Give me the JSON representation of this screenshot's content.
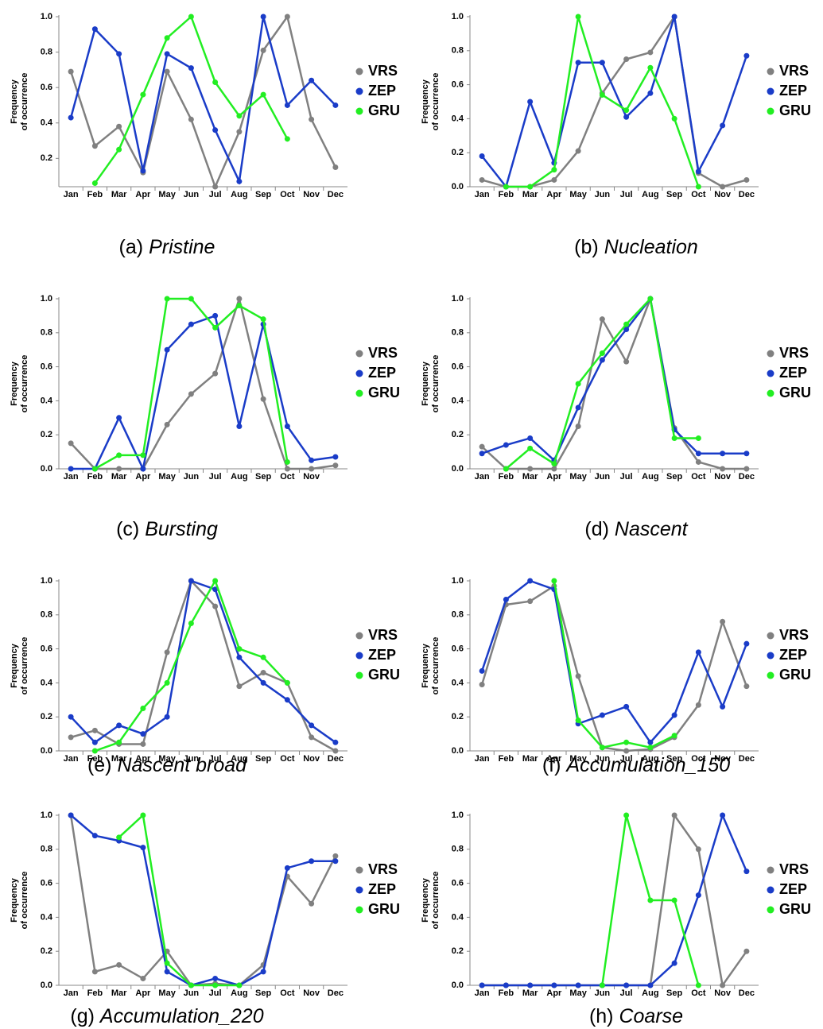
{
  "chart_data": [
    {
      "type": "line",
      "label": "(a)",
      "caption": "Pristine",
      "y_label": [
        "Frequency",
        "of occurrence"
      ],
      "categories": [
        "Jan",
        "Feb",
        "Mar",
        "Apr",
        "May",
        "Jun",
        "Jul",
        "Aug",
        "Sep",
        "Oct",
        "Nov",
        "Dec"
      ],
      "ylim": [
        0.04,
        1
      ],
      "yticks": [
        0.2,
        0.4,
        0.6,
        0.8,
        {
          "value": 1,
          "label": "1.0"
        }
      ],
      "series": [
        {
          "name": "VRS",
          "color": "#808080",
          "values": [
            0.69,
            0.27,
            0.38,
            0.12,
            0.69,
            0.42,
            0.04,
            0.35,
            0.81,
            1.0,
            0.42,
            0.15
          ]
        },
        {
          "name": "ZEP",
          "color": "#1a3cc8",
          "values": [
            0.43,
            0.93,
            0.79,
            0.13,
            0.79,
            0.71,
            0.36,
            0.07,
            1.0,
            0.5,
            0.64,
            0.5
          ]
        },
        {
          "name": "GRU",
          "color": "#22ee22",
          "values": [
            null,
            0.06,
            0.25,
            0.56,
            0.88,
            1.0,
            0.63,
            0.44,
            0.56,
            0.31,
            null,
            null
          ]
        }
      ]
    },
    {
      "type": "line",
      "label": "(b)",
      "caption": "Nucleation",
      "y_label": [
        "Frequency",
        "of occurrence"
      ],
      "categories": [
        "Jan",
        "Feb",
        "Mar",
        "Apr",
        "May",
        "Jun",
        "Jul",
        "Aug",
        "Sep",
        "Oct",
        "Nov",
        "Dec"
      ],
      "ylim": [
        0,
        1
      ],
      "yticks": [
        {
          "value": 0,
          "label": "0.0"
        },
        0.2,
        0.4,
        0.6,
        0.8,
        {
          "value": 1,
          "label": "1.0"
        }
      ],
      "series": [
        {
          "name": "VRS",
          "color": "#808080",
          "values": [
            0.04,
            0,
            0,
            0.04,
            0.21,
            0.55,
            0.75,
            0.79,
            1.0,
            0.08,
            0,
            0.04
          ]
        },
        {
          "name": "ZEP",
          "color": "#1a3cc8",
          "values": [
            0.18,
            0,
            0.5,
            0.14,
            0.73,
            0.73,
            0.41,
            0.55,
            1.0,
            0.09,
            0.36,
            0.77
          ]
        },
        {
          "name": "GRU",
          "color": "#22ee22",
          "values": [
            null,
            0,
            0,
            0.1,
            1.0,
            0.54,
            0.45,
            0.7,
            0.4,
            0,
            null,
            null
          ]
        }
      ]
    },
    {
      "type": "line",
      "label": "(c)",
      "caption": "Bursting",
      "y_label": [
        "Frequency",
        "of occurrence"
      ],
      "categories": [
        "Jan",
        "Feb",
        "Mar",
        "Apr",
        "May",
        "Jun",
        "Jul",
        "Aug",
        "Sep",
        "Oct",
        "Nov",
        null
      ],
      "ylim": [
        0,
        1
      ],
      "yticks": [
        {
          "value": 0,
          "label": "0.0"
        },
        0.2,
        0.4,
        0.6,
        0.8,
        {
          "value": 1,
          "label": "1.0"
        }
      ],
      "series": [
        {
          "name": "VRS",
          "color": "#808080",
          "values": [
            0.15,
            0,
            0,
            0,
            0.26,
            0.44,
            0.56,
            1.0,
            0.41,
            0,
            0,
            0.02
          ]
        },
        {
          "name": "ZEP",
          "color": "#1a3cc8",
          "values": [
            0,
            0,
            0.3,
            0,
            0.7,
            0.85,
            0.9,
            0.25,
            0.85,
            0.25,
            0.05,
            0.07
          ]
        },
        {
          "name": "GRU",
          "color": "#22ee22",
          "values": [
            null,
            0,
            0.08,
            0.08,
            1.0,
            1.0,
            0.83,
            0.96,
            0.88,
            0.04,
            null,
            null
          ]
        }
      ]
    },
    {
      "type": "line",
      "label": "(d)",
      "caption": "Nascent",
      "y_label": [
        "Frequency",
        "of occurrence"
      ],
      "categories": [
        "Jan",
        "Feb",
        "Mar",
        "Apr",
        "May",
        "Jun",
        "Jul",
        "Aug",
        "Sep",
        "Oct",
        "Nov",
        "Dec"
      ],
      "ylim": [
        0,
        1
      ],
      "yticks": [
        {
          "value": 0,
          "label": "0.0"
        },
        0.2,
        0.4,
        0.6,
        0.8,
        {
          "value": 1,
          "label": "1.0"
        }
      ],
      "series": [
        {
          "name": "VRS",
          "color": "#808080",
          "values": [
            0.13,
            0,
            0,
            0,
            0.25,
            0.88,
            0.63,
            1.0,
            0.24,
            0.04,
            0,
            0
          ]
        },
        {
          "name": "ZEP",
          "color": "#1a3cc8",
          "values": [
            0.09,
            0.14,
            0.18,
            0.05,
            0.36,
            0.64,
            0.82,
            1.0,
            0.23,
            0.09,
            0.09,
            0.09
          ]
        },
        {
          "name": "GRU",
          "color": "#22ee22",
          "values": [
            null,
            0,
            0.12,
            0.03,
            0.5,
            0.68,
            0.85,
            1.0,
            0.18,
            0.18,
            null,
            null
          ]
        }
      ]
    },
    {
      "type": "line",
      "label": "(e)",
      "caption": "Nascent broad",
      "y_label": [
        "Frequency",
        "of occurrence"
      ],
      "categories": [
        "Jan",
        "Feb",
        "Mar",
        "Apr",
        "May",
        "Jun",
        "Jul",
        "Aug",
        "Sep",
        "Oct",
        "Nov",
        "Dec"
      ],
      "ylim": [
        0,
        1
      ],
      "yticks": [
        {
          "value": 0,
          "label": "0.0"
        },
        0.2,
        0.4,
        0.6,
        0.8,
        {
          "value": 1,
          "label": "1.0"
        }
      ],
      "series": [
        {
          "name": "VRS",
          "color": "#808080",
          "values": [
            0.08,
            0.12,
            0.04,
            0.04,
            0.58,
            1.0,
            0.85,
            0.38,
            0.46,
            0.4,
            0.08,
            0
          ]
        },
        {
          "name": "ZEP",
          "color": "#1a3cc8",
          "values": [
            0.2,
            0.05,
            0.15,
            0.1,
            0.2,
            1.0,
            0.95,
            0.55,
            0.4,
            0.3,
            0.15,
            0.05
          ]
        },
        {
          "name": "GRU",
          "color": "#22ee22",
          "values": [
            null,
            0,
            0.05,
            0.25,
            0.4,
            0.75,
            1.0,
            0.6,
            0.55,
            0.4,
            null,
            null
          ]
        }
      ]
    },
    {
      "type": "line",
      "label": "(f)",
      "caption": "Accumulation_150",
      "y_label": [
        "Frequency",
        "of occurrence"
      ],
      "categories": [
        "Jan",
        "Feb",
        "Mar",
        "Apr",
        "May",
        "Jun",
        "Jul",
        "Aug",
        "Sep",
        "Oct",
        "Nov",
        "Dec"
      ],
      "ylim": [
        0,
        1
      ],
      "yticks": [
        {
          "value": 0,
          "label": "0.0"
        },
        0.2,
        0.4,
        0.6,
        0.8,
        {
          "value": 1,
          "label": "1.0"
        }
      ],
      "series": [
        {
          "name": "VRS",
          "color": "#808080",
          "values": [
            0.39,
            0.86,
            0.88,
            0.97,
            0.44,
            0.02,
            0,
            0.01,
            0.08,
            0.27,
            0.76,
            0.38
          ]
        },
        {
          "name": "ZEP",
          "color": "#1a3cc8",
          "values": [
            0.47,
            0.89,
            1.0,
            0.95,
            0.16,
            0.21,
            0.26,
            0.05,
            0.21,
            0.58,
            0.26,
            0.63
          ]
        },
        {
          "name": "GRU",
          "color": "#22ee22",
          "values": [
            null,
            null,
            null,
            1.0,
            0.18,
            0.02,
            0.05,
            0.02,
            0.09,
            null,
            null,
            null
          ]
        }
      ]
    },
    {
      "type": "line",
      "label": "(g)",
      "caption": "Accumulation_220",
      "y_label": [
        "Frequency",
        "of occurrence"
      ],
      "categories": [
        "Jan",
        "Feb",
        "Mar",
        "Apr",
        "May",
        "Jun",
        "Jul",
        "Aug",
        "Sep",
        "Oct",
        "Nov",
        "Dec"
      ],
      "ylim": [
        0,
        1
      ],
      "yticks": [
        {
          "value": 0,
          "label": "0.0"
        },
        0.2,
        0.4,
        0.6,
        0.8,
        {
          "value": 1,
          "label": "1.0"
        }
      ],
      "series": [
        {
          "name": "VRS",
          "color": "#808080",
          "values": [
            1.0,
            0.08,
            0.12,
            0.04,
            0.2,
            0,
            0.01,
            0,
            0.12,
            0.64,
            0.48,
            0.76
          ]
        },
        {
          "name": "ZEP",
          "color": "#1a3cc8",
          "values": [
            1.0,
            0.88,
            0.85,
            0.81,
            0.08,
            0,
            0.04,
            0,
            0.08,
            0.69,
            0.73,
            0.73
          ]
        },
        {
          "name": "GRU",
          "color": "#22ee22",
          "values": [
            null,
            null,
            0.87,
            1.0,
            0.13,
            0,
            0,
            0,
            null,
            null,
            null,
            null
          ]
        }
      ]
    },
    {
      "type": "line",
      "label": "(h)",
      "caption": "Coarse",
      "y_label": [
        "Frequency",
        "of occurrence"
      ],
      "categories": [
        "Jan",
        "Feb",
        "Mar",
        "Apr",
        "May",
        "Jun",
        "Jul",
        "Aug",
        "Sep",
        "Oct",
        "Nov",
        "Dec"
      ],
      "ylim": [
        0,
        1
      ],
      "yticks": [
        {
          "value": 0,
          "label": "0.0"
        },
        0.2,
        0.4,
        0.6,
        0.8,
        {
          "value": 1,
          "label": "1.0"
        }
      ],
      "series": [
        {
          "name": "VRS",
          "color": "#808080",
          "values": [
            0,
            0,
            0,
            0,
            0,
            0,
            0,
            0,
            1.0,
            0.8,
            0,
            0.2
          ]
        },
        {
          "name": "ZEP",
          "color": "#1a3cc8",
          "values": [
            0,
            0,
            0,
            0,
            0,
            0,
            0,
            0,
            0.13,
            0.53,
            1.0,
            0.67
          ]
        },
        {
          "name": "GRU",
          "color": "#22ee22",
          "values": [
            null,
            null,
            null,
            null,
            null,
            0,
            1.0,
            0.5,
            0.5,
            0,
            null,
            null
          ]
        }
      ]
    }
  ]
}
